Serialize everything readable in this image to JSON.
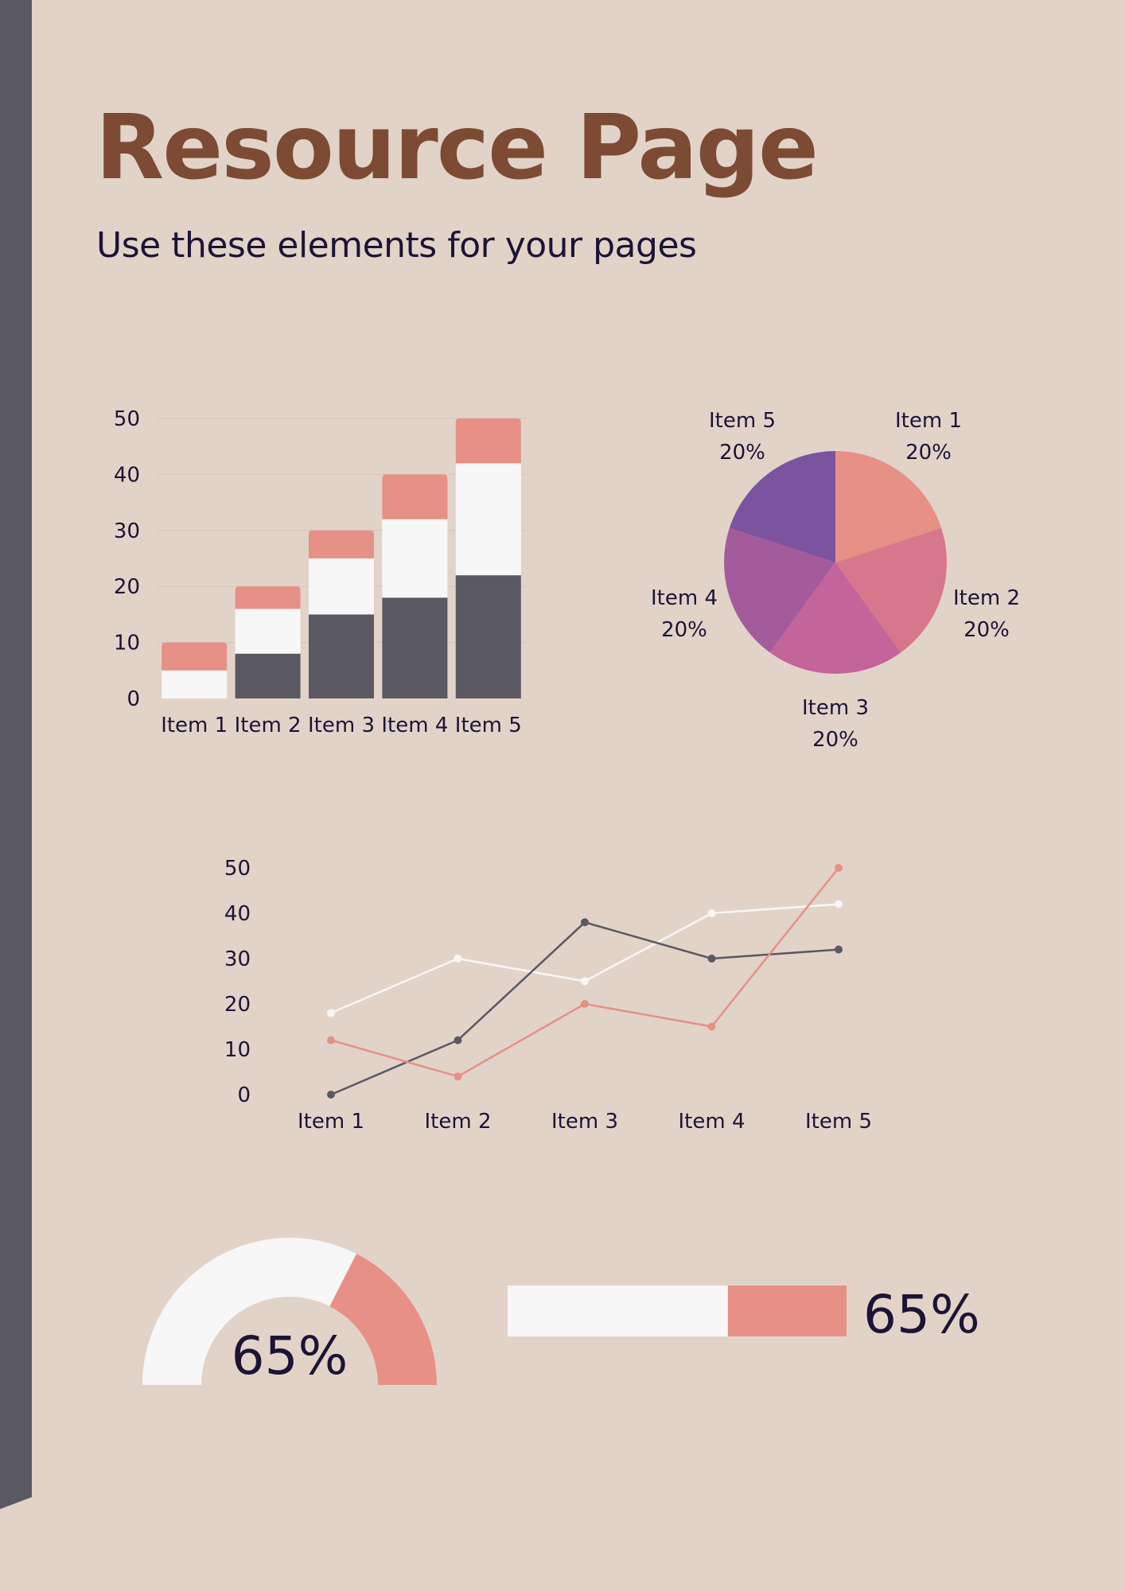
{
  "header": {
    "title": "Resource Page",
    "subtitle": "Use these elements for your pages"
  },
  "colors": {
    "background": "#e2d3c9",
    "strip": "#5a5862",
    "title": "#7d4b33",
    "text": "#1b1435",
    "salmon": "#e69086",
    "white": "#f8f7f7",
    "dark": "#5a5862"
  },
  "chart_data": [
    {
      "type": "bar",
      "stacked": true,
      "categories": [
        "Item 1",
        "Item 2",
        "Item 3",
        "Item 4",
        "Item 5"
      ],
      "ylim": [
        0,
        50
      ],
      "yticks": [
        "0",
        "10",
        "20",
        "30",
        "40",
        "50"
      ],
      "grid": true,
      "series": [
        {
          "values": [
            0,
            8,
            15,
            18,
            22
          ],
          "color": "#5a5862"
        },
        {
          "values": [
            5,
            8,
            10,
            14,
            20
          ],
          "color": "#f8f7f7"
        },
        {
          "values": [
            5,
            4,
            5,
            8,
            8
          ],
          "color": "#e69086"
        }
      ]
    },
    {
      "type": "pie",
      "slices": [
        {
          "label": "Item 1",
          "value": 20,
          "pct": "20%",
          "color": "#e69086"
        },
        {
          "label": "Item 2",
          "value": 20,
          "pct": "20%",
          "color": "#d6778b"
        },
        {
          "label": "Item 3",
          "value": 20,
          "pct": "20%",
          "color": "#c3649a"
        },
        {
          "label": "Item 4",
          "value": 20,
          "pct": "20%",
          "color": "#a45b9c"
        },
        {
          "label": "Item 5",
          "value": 20,
          "pct": "20%",
          "color": "#7b539e"
        }
      ]
    },
    {
      "type": "line",
      "categories": [
        "Item 1",
        "Item 2",
        "Item 3",
        "Item 4",
        "Item 5"
      ],
      "ylim": [
        0,
        50
      ],
      "yticks": [
        "0",
        "10",
        "20",
        "30",
        "40",
        "50"
      ],
      "grid": false,
      "series": [
        {
          "values": [
            18,
            30,
            25,
            40,
            42
          ],
          "color": "#f8f7f7"
        },
        {
          "values": [
            0,
            12,
            38,
            30,
            32
          ],
          "color": "#5a5862"
        },
        {
          "values": [
            12,
            4,
            20,
            15,
            50
          ],
          "color": "#e69086"
        }
      ]
    },
    {
      "type": "gauge",
      "value": 65,
      "max": 100,
      "label": "65%",
      "colors": {
        "track": "#f8f7f7",
        "fill": "#e69086"
      }
    },
    {
      "type": "progress",
      "value": 65,
      "max": 100,
      "label": "65%",
      "colors": {
        "track": "#f8f7f7",
        "fill": "#e69086"
      }
    }
  ]
}
